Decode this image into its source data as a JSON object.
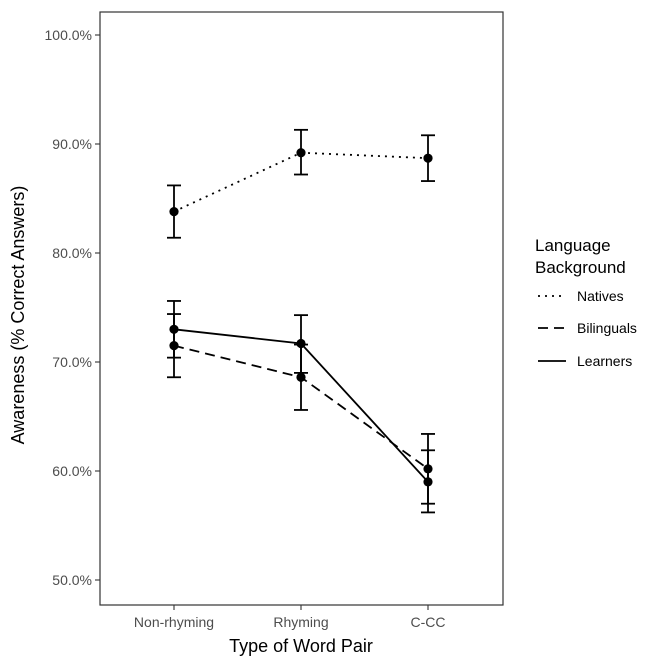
{
  "chart_data": {
    "type": "line",
    "xlabel": "Type of Word Pair",
    "ylabel": "Awareness (% Correct Answers)",
    "categories": [
      "Non-rhyming",
      "Rhyming",
      "C-CC"
    ],
    "ylim": [
      0.5,
      1.0
    ],
    "yticks": [
      0.5,
      0.6,
      0.7,
      0.8,
      0.9,
      1.0
    ],
    "ytick_labels": [
      "50.0%",
      "60.0%",
      "70.0%",
      "80.0%",
      "90.0%",
      "100.0%"
    ],
    "grid": false,
    "legend": {
      "title_lines": [
        "Language",
        "Background"
      ],
      "position": "right"
    },
    "series": [
      {
        "name": "Natives",
        "line_style": "dotted",
        "values": [
          0.838,
          0.892,
          0.887
        ],
        "err_low": [
          0.814,
          0.872,
          0.866
        ],
        "err_high": [
          0.862,
          0.913,
          0.908
        ]
      },
      {
        "name": "Bilinguals",
        "line_style": "dashed",
        "values": [
          0.715,
          0.686,
          0.602
        ],
        "err_low": [
          0.686,
          0.656,
          0.57
        ],
        "err_high": [
          0.744,
          0.716,
          0.634
        ]
      },
      {
        "name": "Learners",
        "line_style": "solid",
        "values": [
          0.73,
          0.717,
          0.59
        ],
        "err_low": [
          0.704,
          0.69,
          0.562
        ],
        "err_high": [
          0.756,
          0.743,
          0.619
        ]
      }
    ],
    "colors": {
      "line": "#000000",
      "axis": "#333333",
      "tick_text": "#4d4d4d"
    }
  }
}
